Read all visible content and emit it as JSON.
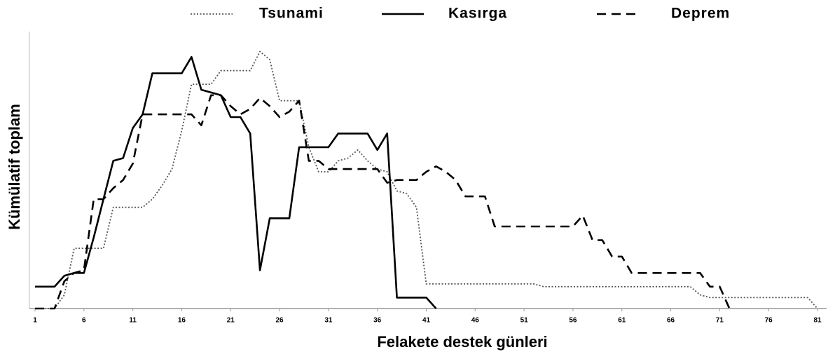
{
  "chart_data": {
    "type": "line",
    "x_label": "Felakete destek günleri",
    "y_label": "Kümülatif toplam",
    "x": [
      1,
      2,
      3,
      4,
      5,
      6,
      7,
      8,
      9,
      10,
      11,
      12,
      13,
      14,
      15,
      16,
      17,
      18,
      19,
      20,
      21,
      22,
      23,
      24,
      25,
      26,
      27,
      28,
      29,
      30,
      31,
      32,
      33,
      34,
      35,
      36,
      37,
      38,
      39,
      40,
      41,
      42,
      43,
      44,
      45,
      46,
      47,
      48,
      49,
      50,
      51,
      52,
      53,
      54,
      55,
      56,
      57,
      58,
      59,
      60,
      61,
      62,
      63,
      64,
      65,
      66,
      67,
      68,
      69,
      70,
      71,
      72,
      73,
      74,
      75,
      76,
      77,
      78,
      79,
      80,
      81
    ],
    "xlim": [
      1,
      81
    ],
    "xticks": [
      1,
      6,
      11,
      16,
      21,
      26,
      31,
      36,
      41,
      46,
      51,
      56,
      61,
      66,
      71,
      76,
      81
    ],
    "ylim": [
      0,
      100
    ],
    "legend": "top",
    "series": [
      {
        "name": "Tsunami",
        "color": "#555555",
        "style": "dotted",
        "values": [
          0,
          0,
          0,
          5,
          22,
          22,
          22,
          22,
          37,
          37,
          37,
          37,
          40,
          45,
          51,
          65,
          82,
          82,
          82,
          87,
          87,
          87,
          87,
          94,
          91,
          76,
          76,
          76,
          59,
          50,
          50,
          54,
          55,
          58,
          54,
          51,
          50,
          43,
          42,
          37,
          9,
          9,
          9,
          9,
          9,
          9,
          9,
          9,
          9,
          9,
          9,
          9,
          8,
          8,
          8,
          8,
          8,
          8,
          8,
          8,
          8,
          8,
          8,
          8,
          8,
          8,
          8,
          8,
          5,
          4,
          4,
          4,
          4,
          4,
          4,
          4,
          4,
          4,
          4,
          4,
          0
        ]
      },
      {
        "name": "Kasırga",
        "color": "#000000",
        "style": "solid",
        "values": [
          8,
          8,
          8,
          12,
          13,
          13,
          26,
          40,
          54,
          55,
          66,
          71,
          86,
          86,
          86,
          86,
          92,
          80,
          79,
          78,
          70,
          70,
          64,
          14,
          33,
          33,
          33,
          59,
          59,
          59,
          59,
          64,
          64,
          64,
          64,
          58,
          64,
          4,
          4,
          4,
          4,
          0,
          null,
          null,
          null,
          null,
          null,
          null,
          null,
          null,
          null,
          null,
          null,
          null,
          null,
          null,
          null,
          null,
          null,
          null,
          null,
          null,
          null,
          null,
          null,
          null,
          null,
          null,
          null,
          null,
          null,
          null,
          null,
          null,
          null,
          null,
          null,
          null,
          null,
          null,
          null
        ]
      },
      {
        "name": "Deprem",
        "color": "#000000",
        "style": "dashed",
        "values": [
          0,
          0,
          0,
          10,
          13,
          14,
          40,
          40,
          44,
          47,
          53,
          71,
          71,
          71,
          71,
          71,
          71,
          67,
          78,
          78,
          74,
          71,
          73,
          77,
          74,
          70,
          72,
          76,
          54,
          54,
          51,
          51,
          51,
          51,
          51,
          51,
          46,
          47,
          47,
          47,
          50,
          52,
          50,
          47,
          41,
          41,
          41,
          30,
          30,
          30,
          30,
          30,
          30,
          30,
          30,
          30,
          34,
          25,
          25,
          19,
          19,
          13,
          13,
          13,
          13,
          13,
          13,
          13,
          13,
          8,
          8,
          0,
          null,
          null,
          null,
          null,
          null,
          null,
          null,
          null,
          null
        ]
      }
    ]
  }
}
